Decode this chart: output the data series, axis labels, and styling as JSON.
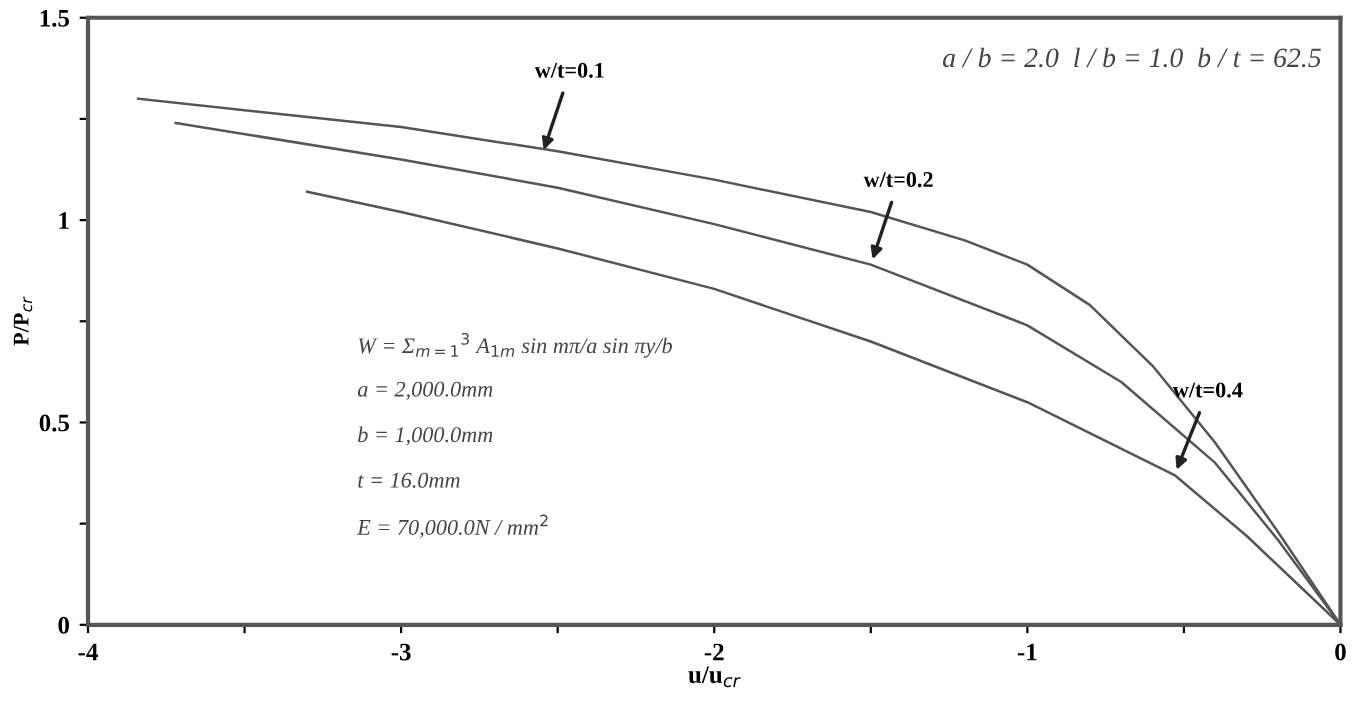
{
  "chart_data": {
    "type": "line",
    "xlabel": "u/u$_{cr}$",
    "ylabel": "P/P$_{cr}$",
    "xlim": [
      -4,
      0
    ],
    "xticks": [
      -4,
      {
        "value": -3.5,
        "label": null
      },
      -3,
      {
        "value": -2.5,
        "label": null
      },
      -2,
      {
        "value": -1.5,
        "label": null
      },
      -1,
      {
        "value": -0.5,
        "label": null
      },
      0
    ],
    "ylim": [
      0,
      1.5
    ],
    "yticks": [
      0,
      {
        "value": 0.25,
        "label": null
      },
      0.5,
      {
        "value": 0.75,
        "label": null
      },
      1,
      {
        "value": 1.25,
        "label": null
      },
      1.5
    ],
    "grid": false,
    "marker": "none",
    "line_style": "solid",
    "series": [
      {
        "color": "#555555",
        "x": [
          -3.84,
          -3.0,
          -2.5,
          -2.0,
          -1.5,
          -1.2,
          -1.0,
          -0.8,
          -0.6,
          -0.4,
          -0.2,
          0
        ],
        "values": [
          1.3,
          1.23,
          1.17,
          1.1,
          1.02,
          0.95,
          0.89,
          0.79,
          0.64,
          0.45,
          0.23,
          0
        ]
      },
      {
        "color": "#555555",
        "x": [
          -3.72,
          -3.0,
          -2.5,
          -2.0,
          -1.5,
          -1.0,
          -0.7,
          -0.4,
          -0.2,
          0
        ],
        "values": [
          1.24,
          1.15,
          1.08,
          0.99,
          0.89,
          0.74,
          0.6,
          0.4,
          0.21,
          0
        ]
      },
      {
        "color": "#555555",
        "x": [
          -3.3,
          -3.0,
          -2.5,
          -2.0,
          -1.5,
          -1.0,
          -0.53,
          -0.3,
          0
        ],
        "values": [
          1.07,
          1.02,
          0.93,
          0.83,
          0.7,
          0.55,
          0.37,
          0.22,
          0
        ]
      }
    ],
    "annotations": [
      {
        "text": "w/t=0.1",
        "x": -2.55,
        "y": 1.16
      },
      {
        "text": "w/t=0.2",
        "x": -1.5,
        "y": 0.89
      },
      {
        "text": "w/t=0.4",
        "x": -0.53,
        "y": 0.37
      },
      "a / b = 2.0  l / b = 1.0  b / t = 62.5",
      "W = Σ$_{m=1}$$^{3}$ A$_{1m}$ sin mπ/a sin πy/b",
      "a = 2,000.0mm",
      "b = 1,000.0mm",
      "t = 16.0mm",
      "E = 70,000.0N / mm$^{2}$"
    ]
  }
}
